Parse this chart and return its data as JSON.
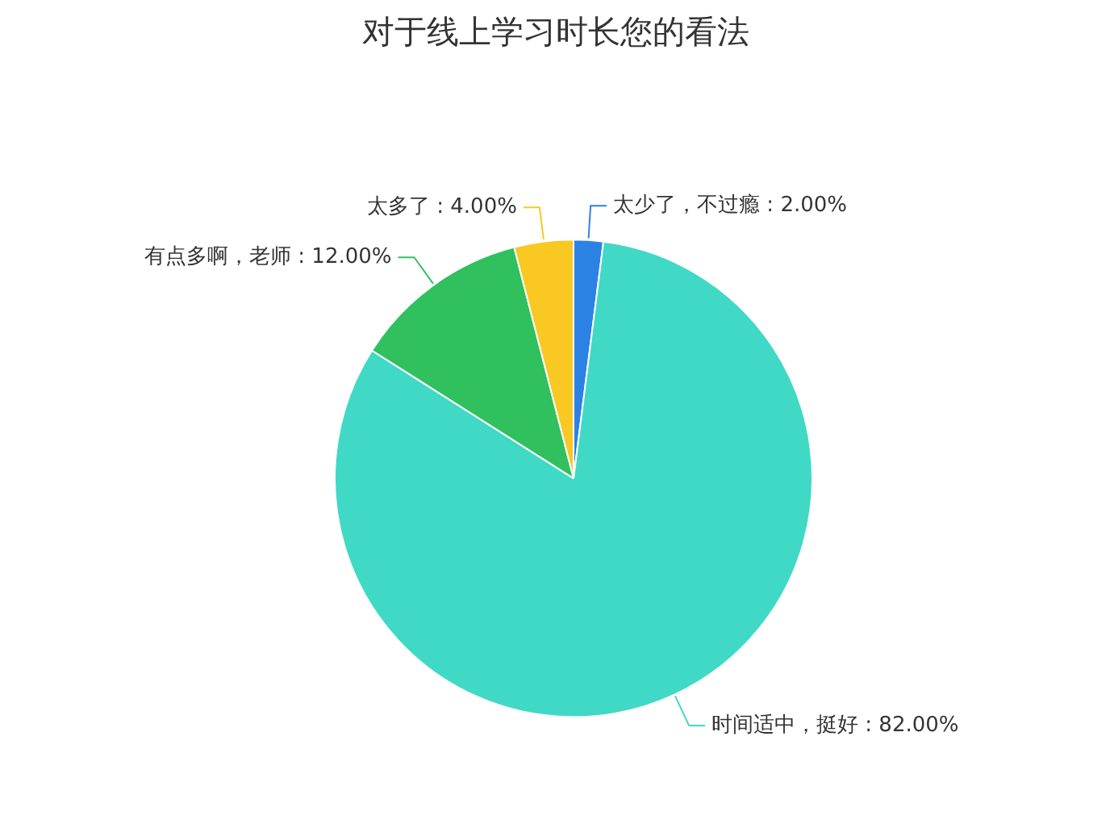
{
  "chart_data": {
    "type": "pie",
    "title": "对于线上学习时长您的看法",
    "categories": [
      "太少了，不过瘾",
      "时间适中，挺好",
      "有点多啊，老师",
      "太多了"
    ],
    "values": [
      2,
      82,
      12,
      4
    ],
    "value_labels": [
      "2.00%",
      "82.00%",
      "12.00%",
      "4.00%"
    ],
    "colors": [
      "#2b82e4",
      "#40d9c6",
      "#30c15e",
      "#f9c823"
    ],
    "legend": false
  }
}
